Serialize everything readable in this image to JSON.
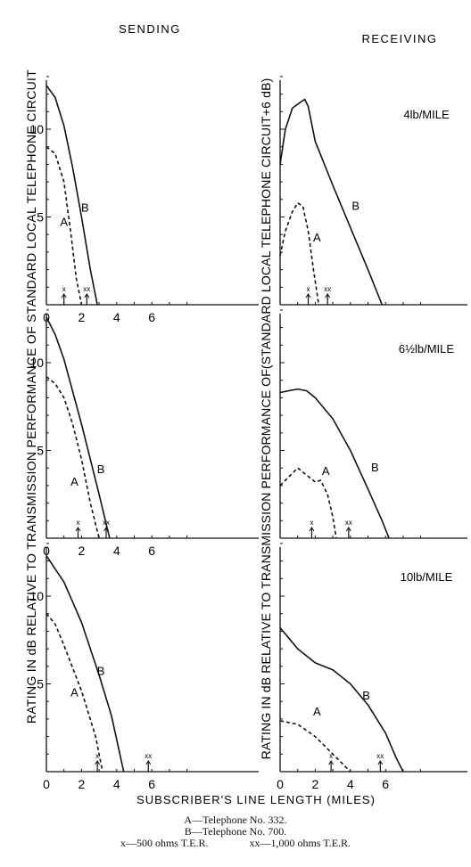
{
  "headers": {
    "left": "SENDING",
    "right": "RECEIVING"
  },
  "axis_labels": {
    "y_left": "RATING IN dB RELATIVE TO TRANSMISSION PERFORMANCE OF  STANDARD LOCAL TELEPHONE CIRCUIT",
    "y_right": "RATING IN dB  RELATIVE TO TRANSMISSION PERFORMANCE OF(STANDARD LOCAL TELEPHONE CIRCUIT+6 dB)",
    "x": "SUBSCRIBER'S LINE LENGTH (MILES)"
  },
  "legend": {
    "line1": "A—Telephone No. 332.",
    "line2": "B—Telephone No. 700.",
    "line3a": "x—500 ohms T.E.R.",
    "line3b": "xx—1,000 ohms T.E.R."
  },
  "chart_data": [
    {
      "type": "line",
      "panel": "sending-1",
      "cable_label": "",
      "xlim": [
        0,
        8
      ],
      "ylim": [
        0,
        13
      ],
      "x_ticks": [
        "0",
        "2",
        "4",
        "6"
      ],
      "y_ticks": [
        "5",
        "10"
      ],
      "series": [
        {
          "name": "A",
          "style": "dashed",
          "x": [
            0,
            0.5,
            1.0,
            1.4,
            1.7,
            2.0
          ],
          "y": [
            9,
            8.6,
            7.0,
            4.0,
            1.5,
            0
          ]
        },
        {
          "name": "B",
          "style": "solid",
          "x": [
            0,
            0.5,
            1.0,
            1.5,
            2.0,
            2.5,
            2.9
          ],
          "y": [
            12.5,
            11.8,
            10.2,
            7.8,
            5.0,
            2.0,
            0
          ]
        }
      ],
      "markers": [
        {
          "label": "x",
          "x": 1.0
        },
        {
          "label": "xx",
          "x": 2.3
        }
      ],
      "labels": [
        {
          "text": "A",
          "x": 1.0,
          "y": 4.5
        },
        {
          "text": "B",
          "x": 2.2,
          "y": 5.3
        }
      ]
    },
    {
      "type": "line",
      "panel": "sending-2",
      "cable_label": "",
      "xlim": [
        0,
        8
      ],
      "ylim": [
        0,
        13
      ],
      "x_ticks": [
        "0",
        "2",
        "4",
        "6"
      ],
      "y_ticks": [
        "5",
        "10"
      ],
      "series": [
        {
          "name": "A",
          "style": "dashed",
          "x": [
            0,
            0.5,
            1.0,
            1.5,
            2.0,
            2.5,
            3.0
          ],
          "y": [
            9.2,
            8.8,
            8.0,
            6.5,
            4.5,
            2.0,
            0
          ]
        },
        {
          "name": "B",
          "style": "solid",
          "x": [
            0,
            0.5,
            1.0,
            2.0,
            3.0,
            3.6
          ],
          "y": [
            12.6,
            11.6,
            10.2,
            6.5,
            2.5,
            0
          ]
        }
      ],
      "markers": [
        {
          "label": "x",
          "x": 1.8
        },
        {
          "label": "xx",
          "x": 3.4
        }
      ],
      "labels": [
        {
          "text": "A",
          "x": 1.6,
          "y": 3.0
        },
        {
          "text": "B",
          "x": 3.1,
          "y": 3.7
        }
      ]
    },
    {
      "type": "line",
      "panel": "sending-3",
      "cable_label": "",
      "xlim": [
        0,
        8
      ],
      "ylim": [
        0,
        13
      ],
      "x_ticks": [
        "0",
        "2",
        "4",
        "6"
      ],
      "y_ticks": [
        "5",
        "10"
      ],
      "series": [
        {
          "name": "A",
          "style": "dashed",
          "x": [
            0,
            0.5,
            1.0,
            2.0,
            2.8,
            3.2
          ],
          "y": [
            9.0,
            8.4,
            7.2,
            4.6,
            2.0,
            0
          ]
        },
        {
          "name": "B",
          "style": "solid",
          "x": [
            0,
            1.0,
            2.0,
            3.0,
            3.7,
            4.4
          ],
          "y": [
            12.3,
            10.8,
            8.5,
            5.5,
            3.2,
            0
          ]
        }
      ],
      "markers": [
        {
          "label": "x",
          "x": 2.9
        },
        {
          "label": "xx",
          "x": 5.8
        }
      ],
      "labels": [
        {
          "text": "A",
          "x": 1.6,
          "y": 4.3
        },
        {
          "text": "B",
          "x": 3.1,
          "y": 5.5
        }
      ]
    },
    {
      "type": "line",
      "panel": "receiving-1",
      "cable_label": "4lb/MILE",
      "xlim": [
        0,
        8
      ],
      "ylim": [
        0,
        13
      ],
      "x_ticks": [],
      "y_ticks": [],
      "series": [
        {
          "name": "A",
          "style": "dashed",
          "x": [
            0,
            0.3,
            0.7,
            1.0,
            1.3,
            1.6,
            1.9,
            2.2
          ],
          "y": [
            2.8,
            4.2,
            5.3,
            5.8,
            5.6,
            4.2,
            2.0,
            0
          ]
        },
        {
          "name": "B",
          "style": "solid",
          "x": [
            0,
            0.3,
            0.7,
            1.1,
            1.4,
            1.6,
            2.0,
            3.0,
            4.0,
            5.0,
            5.8
          ],
          "y": [
            8.0,
            10.0,
            11.2,
            11.5,
            11.7,
            11.3,
            9.3,
            6.8,
            4.4,
            2.0,
            0
          ]
        }
      ],
      "markers": [
        {
          "label": "x",
          "x": 1.6
        },
        {
          "label": "xx",
          "x": 2.7
        }
      ],
      "labels": [
        {
          "text": "A",
          "x": 2.1,
          "y": 3.6
        },
        {
          "text": "B",
          "x": 4.3,
          "y": 5.4
        }
      ]
    },
    {
      "type": "line",
      "panel": "receiving-2",
      "cable_label": "6½lb/MILE",
      "xlim": [
        0,
        8
      ],
      "ylim": [
        0,
        13
      ],
      "x_ticks": [],
      "y_ticks": [],
      "series": [
        {
          "name": "A",
          "style": "dashed",
          "x": [
            0,
            0.5,
            1.0,
            1.5,
            2.0,
            2.3,
            2.7,
            3.0,
            3.2
          ],
          "y": [
            3.0,
            3.5,
            4.0,
            3.6,
            3.2,
            3.3,
            2.5,
            1.2,
            0
          ]
        },
        {
          "name": "B",
          "style": "solid",
          "x": [
            0,
            0.5,
            1.0,
            1.5,
            2.0,
            3.0,
            4.0,
            5.0,
            5.8,
            6.2
          ],
          "y": [
            8.3,
            8.4,
            8.5,
            8.4,
            8.0,
            6.8,
            5.0,
            2.8,
            1.0,
            0
          ]
        }
      ],
      "markers": [
        {
          "label": "x",
          "x": 1.8
        },
        {
          "label": "xx",
          "x": 3.9
        }
      ],
      "labels": [
        {
          "text": "A",
          "x": 2.6,
          "y": 3.6
        },
        {
          "text": "B",
          "x": 5.4,
          "y": 3.8
        }
      ]
    },
    {
      "type": "line",
      "panel": "receiving-3",
      "cable_label": "10lb/MILE",
      "xlim": [
        0,
        8
      ],
      "ylim": [
        0,
        13
      ],
      "x_ticks": [
        "0",
        "2",
        "4",
        "6"
      ],
      "y_ticks": [],
      "series": [
        {
          "name": "A",
          "style": "dashed",
          "x": [
            0,
            1.0,
            2.0,
            3.0,
            3.6,
            4.0
          ],
          "y": [
            2.9,
            2.7,
            2.0,
            1.0,
            0.4,
            0
          ]
        },
        {
          "name": "B",
          "style": "solid",
          "x": [
            0,
            0.5,
            1.0,
            2.0,
            3.0,
            4.0,
            5.0,
            6.0,
            6.6,
            7.0
          ],
          "y": [
            8.2,
            7.6,
            7.0,
            6.2,
            5.8,
            5.0,
            3.8,
            2.2,
            0.8,
            0
          ]
        }
      ],
      "markers": [
        {
          "label": "x",
          "x": 2.9
        },
        {
          "label": "xx",
          "x": 5.7
        }
      ],
      "labels": [
        {
          "text": "A",
          "x": 2.1,
          "y": 3.2
        },
        {
          "text": "B",
          "x": 4.9,
          "y": 4.1
        }
      ]
    }
  ]
}
